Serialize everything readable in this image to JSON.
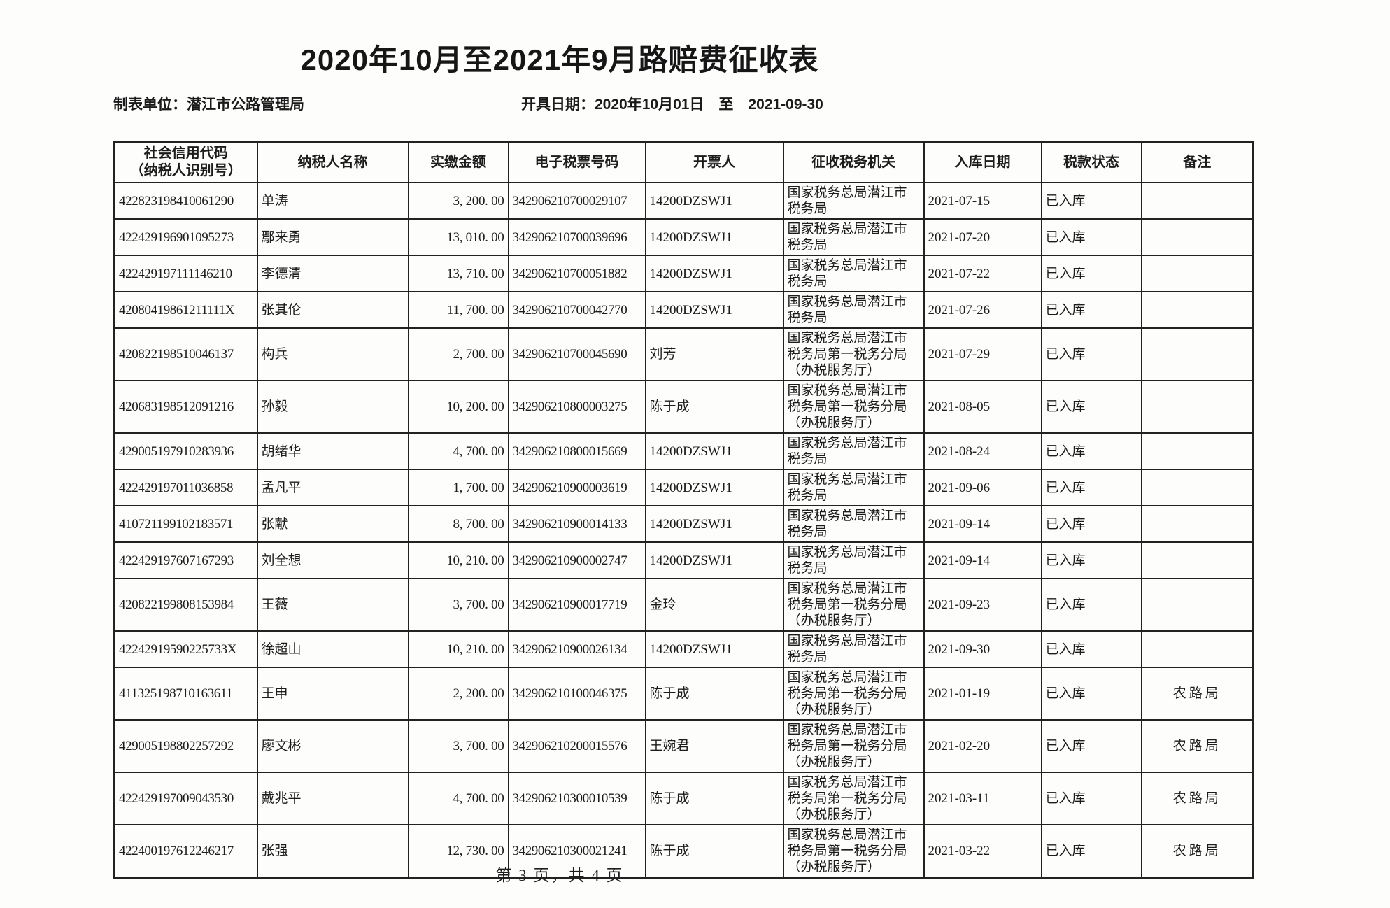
{
  "page": {
    "title": "2020年10月至2021年9月路赔费征收表",
    "maker_label": "制表单位：潜江市公路管理局",
    "issue_date_label": "开具日期：2020年10月01日　至　2021-09-30",
    "footer": "第 3 页，共 4 页"
  },
  "table": {
    "columns": [
      "社会信用代码\n（纳税人识别号）",
      "纳税人名称",
      "实缴金额",
      "电子税票号码",
      "开票人",
      "征收税务机关",
      "入库日期",
      "税款状态",
      "备注"
    ],
    "rows": [
      [
        "422823198410061290",
        "单涛",
        "3, 200. 00",
        "342906210700029107",
        "14200DZSWJ1",
        "国家税务总局潜江市税务局",
        "2021-07-15",
        "已入库",
        ""
      ],
      [
        "422429196901095273",
        "鄢来勇",
        "13, 010. 00",
        "342906210700039696",
        "14200DZSWJ1",
        "国家税务总局潜江市税务局",
        "2021-07-20",
        "已入库",
        ""
      ],
      [
        "422429197111146210",
        "李德清",
        "13, 710. 00",
        "342906210700051882",
        "14200DZSWJ1",
        "国家税务总局潜江市税务局",
        "2021-07-22",
        "已入库",
        ""
      ],
      [
        "42080419861211111X",
        "张其伦",
        "11, 700. 00",
        "342906210700042770",
        "14200DZSWJ1",
        "国家税务总局潜江市税务局",
        "2021-07-26",
        "已入库",
        ""
      ],
      [
        "420822198510046137",
        "构兵",
        "2, 700. 00",
        "342906210700045690",
        "刘芳",
        "国家税务总局潜江市税务局第一税务分局（办税服务厅）",
        "2021-07-29",
        "已入库",
        ""
      ],
      [
        "420683198512091216",
        "孙毅",
        "10, 200. 00",
        "342906210800003275",
        "陈于成",
        "国家税务总局潜江市税务局第一税务分局（办税服务厅）",
        "2021-08-05",
        "已入库",
        ""
      ],
      [
        "429005197910283936",
        "胡绪华",
        "4, 700. 00",
        "342906210800015669",
        "14200DZSWJ1",
        "国家税务总局潜江市税务局",
        "2021-08-24",
        "已入库",
        ""
      ],
      [
        "422429197011036858",
        "孟凡平",
        "1, 700. 00",
        "342906210900003619",
        "14200DZSWJ1",
        "国家税务总局潜江市税务局",
        "2021-09-06",
        "已入库",
        ""
      ],
      [
        "410721199102183571",
        "张献",
        "8, 700. 00",
        "342906210900014133",
        "14200DZSWJ1",
        "国家税务总局潜江市税务局",
        "2021-09-14",
        "已入库",
        ""
      ],
      [
        "422429197607167293",
        "刘全想",
        "10, 210. 00",
        "342906210900002747",
        "14200DZSWJ1",
        "国家税务总局潜江市税务局",
        "2021-09-14",
        "已入库",
        ""
      ],
      [
        "420822199808153984",
        "王薇",
        "3, 700. 00",
        "342906210900017719",
        "金玲",
        "国家税务总局潜江市税务局第一税务分局（办税服务厅）",
        "2021-09-23",
        "已入库",
        ""
      ],
      [
        "42242919590225733X",
        "徐超山",
        "10, 210. 00",
        "342906210900026134",
        "14200DZSWJ1",
        "国家税务总局潜江市税务局",
        "2021-09-30",
        "已入库",
        ""
      ],
      [
        "411325198710163611",
        "王申",
        "2, 200. 00",
        "342906210100046375",
        "陈于成",
        "国家税务总局潜江市税务局第一税务分局（办税服务厅）",
        "2021-01-19",
        "已入库",
        "农路局"
      ],
      [
        "429005198802257292",
        "廖文彬",
        "3, 700. 00",
        "342906210200015576",
        "王婉君",
        "国家税务总局潜江市税务局第一税务分局（办税服务厅）",
        "2021-02-20",
        "已入库",
        "农路局"
      ],
      [
        "422429197009043530",
        "戴兆平",
        "4, 700. 00",
        "342906210300010539",
        "陈于成",
        "国家税务总局潜江市税务局第一税务分局（办税服务厅）",
        "2021-03-11",
        "已入库",
        "农路局"
      ],
      [
        "422400197612246217",
        "张强",
        "12, 730. 00",
        "342906210300021241",
        "陈于成",
        "国家税务总局潜江市税务局第一税务分局（办税服务厅）",
        "2021-03-22",
        "已入库",
        "农路局"
      ]
    ]
  }
}
